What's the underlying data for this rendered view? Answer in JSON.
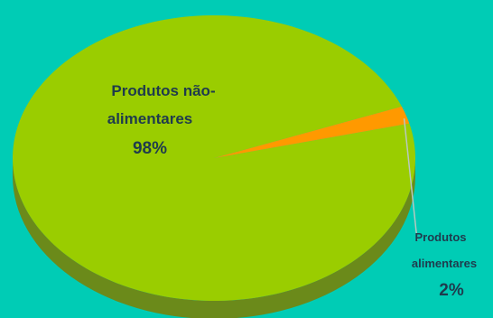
{
  "chart_data": {
    "type": "pie",
    "style": "3d",
    "slices": [
      {
        "label_line1": "Produtos não-",
        "label_line2": "alimentares",
        "value": 98,
        "pct_label": "98%",
        "color": "#9ACD00",
        "side_color": "#6B8A1A"
      },
      {
        "label_line1": "Produtos",
        "label_line2": "alimentares",
        "value": 2,
        "pct_label": "2%",
        "color": "#FF9900",
        "side_color": "#B86A00"
      }
    ],
    "background": "#00CCB5",
    "label_color": "#1F3B4D",
    "leader_line_color": "#B8C8C0"
  }
}
